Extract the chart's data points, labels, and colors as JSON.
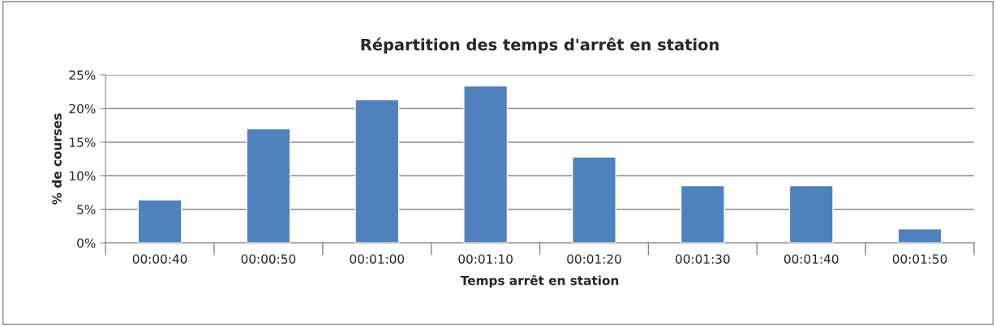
{
  "chart_data": {
    "type": "bar",
    "title": "Répartition des temps d'arrêt en station",
    "xlabel": "Temps arrêt en station",
    "ylabel": "% de courses",
    "categories": [
      "00:00:40",
      "00:00:50",
      "00:01:00",
      "00:01:10",
      "00:01:20",
      "00:01:30",
      "00:01:40",
      "00:01:50"
    ],
    "values": [
      6.4,
      17.0,
      21.3,
      23.4,
      12.8,
      8.5,
      8.5,
      2.1
    ],
    "color": "#4f81bd",
    "ylim": [
      0,
      25
    ],
    "yticks": [
      {
        "value": 0,
        "label": "0%"
      },
      {
        "value": 5,
        "label": "5%"
      },
      {
        "value": 10,
        "label": "10%"
      },
      {
        "value": 15,
        "label": "15%"
      },
      {
        "value": 20,
        "label": "20%"
      },
      {
        "value": 25,
        "label": "25%"
      }
    ],
    "grid": "y",
    "legend": false
  }
}
